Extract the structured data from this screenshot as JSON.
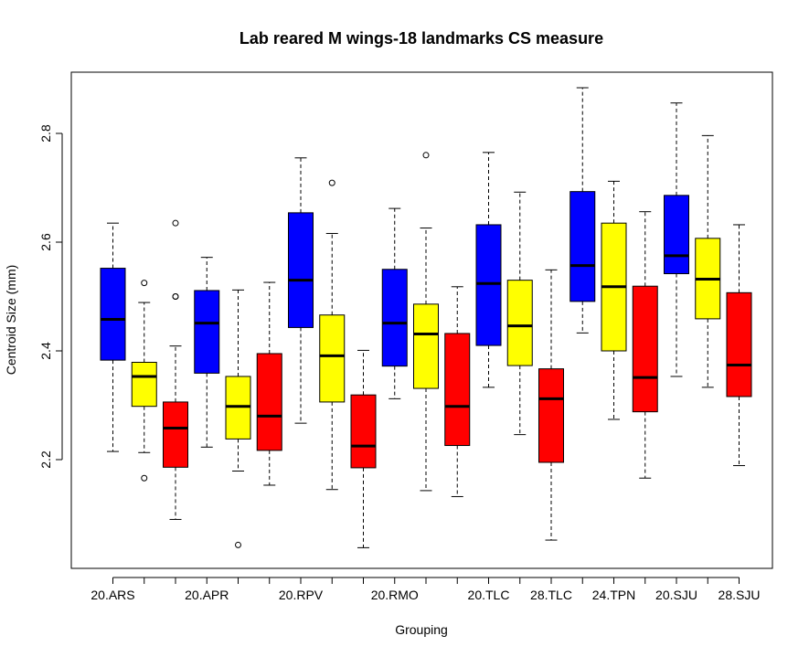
{
  "chart_data": {
    "type": "boxplot",
    "title": "Lab reared M wings-18 landmarks CS measure",
    "xlabel": "Grouping",
    "ylabel": "Centroid Size (mm)",
    "ylim": [
      2.0,
      2.93
    ],
    "yticks": [
      "2.2",
      "2.4",
      "2.6",
      "2.8"
    ],
    "ytick_values": [
      2.2,
      2.4,
      2.6,
      2.8
    ],
    "xtick_labels": [
      "20.ARS",
      "20.APR",
      "20.RPV",
      "20.RMO",
      "20.TLC",
      "28.TLC",
      "24.TPN",
      "20.SJU",
      "28.SJU"
    ],
    "xtick_positions": [
      1,
      4,
      7,
      10,
      13,
      15,
      17,
      19,
      21
    ],
    "colors": {
      "blue": "#0000ff",
      "yellow": "#ffff00",
      "red": "#ff0000"
    },
    "boxes": [
      {
        "pos": 1,
        "color": "blue",
        "whisker_low": 2.215,
        "q1": 2.383,
        "median": 2.458,
        "q3": 2.552,
        "whisker_high": 2.635,
        "outliers": []
      },
      {
        "pos": 2,
        "color": "yellow",
        "whisker_low": 2.213,
        "q1": 2.298,
        "median": 2.353,
        "q3": 2.379,
        "whisker_high": 2.489,
        "outliers": [
          2.525,
          2.166
        ]
      },
      {
        "pos": 3,
        "color": "red",
        "whisker_low": 2.09,
        "q1": 2.186,
        "median": 2.258,
        "q3": 2.306,
        "whisker_high": 2.409,
        "outliers": [
          2.635,
          2.5,
          2.5
        ]
      },
      {
        "pos": 4,
        "color": "blue",
        "whisker_low": 2.223,
        "q1": 2.359,
        "median": 2.451,
        "q3": 2.511,
        "whisker_high": 2.572,
        "outliers": []
      },
      {
        "pos": 5,
        "color": "yellow",
        "whisker_low": 2.179,
        "q1": 2.238,
        "median": 2.298,
        "q3": 2.353,
        "whisker_high": 2.512,
        "outliers": [
          2.043
        ]
      },
      {
        "pos": 6,
        "color": "red",
        "whisker_low": 2.153,
        "q1": 2.217,
        "median": 2.28,
        "q3": 2.395,
        "whisker_high": 2.526,
        "outliers": []
      },
      {
        "pos": 7,
        "color": "blue",
        "whisker_low": 2.267,
        "q1": 2.443,
        "median": 2.53,
        "q3": 2.654,
        "whisker_high": 2.755,
        "outliers": []
      },
      {
        "pos": 8,
        "color": "yellow",
        "whisker_low": 2.145,
        "q1": 2.306,
        "median": 2.391,
        "q3": 2.466,
        "whisker_high": 2.616,
        "outliers": [
          2.709
        ]
      },
      {
        "pos": 9,
        "color": "red",
        "whisker_low": 2.038,
        "q1": 2.185,
        "median": 2.225,
        "q3": 2.319,
        "whisker_high": 2.401,
        "outliers": []
      },
      {
        "pos": 10,
        "color": "blue",
        "whisker_low": 2.312,
        "q1": 2.372,
        "median": 2.451,
        "q3": 2.55,
        "whisker_high": 2.662,
        "outliers": []
      },
      {
        "pos": 11,
        "color": "yellow",
        "whisker_low": 2.143,
        "q1": 2.331,
        "median": 2.431,
        "q3": 2.486,
        "whisker_high": 2.626,
        "outliers": [
          2.76
        ]
      },
      {
        "pos": 12,
        "color": "red",
        "whisker_low": 2.132,
        "q1": 2.226,
        "median": 2.298,
        "q3": 2.432,
        "whisker_high": 2.518,
        "outliers": []
      },
      {
        "pos": 13,
        "color": "blue",
        "whisker_low": 2.333,
        "q1": 2.41,
        "median": 2.524,
        "q3": 2.632,
        "whisker_high": 2.765,
        "outliers": []
      },
      {
        "pos": 14,
        "color": "yellow",
        "whisker_low": 2.246,
        "q1": 2.373,
        "median": 2.446,
        "q3": 2.53,
        "whisker_high": 2.692,
        "outliers": []
      },
      {
        "pos": 15,
        "color": "red",
        "whisker_low": 2.052,
        "q1": 2.195,
        "median": 2.312,
        "q3": 2.367,
        "whisker_high": 2.549,
        "outliers": []
      },
      {
        "pos": 16,
        "color": "blue",
        "whisker_low": 2.433,
        "q1": 2.491,
        "median": 2.557,
        "q3": 2.693,
        "whisker_high": 2.884,
        "outliers": []
      },
      {
        "pos": 17,
        "color": "yellow",
        "whisker_low": 2.274,
        "q1": 2.4,
        "median": 2.518,
        "q3": 2.635,
        "whisker_high": 2.712,
        "outliers": []
      },
      {
        "pos": 18,
        "color": "red",
        "whisker_low": 2.166,
        "q1": 2.288,
        "median": 2.351,
        "q3": 2.519,
        "whisker_high": 2.656,
        "outliers": []
      },
      {
        "pos": 19,
        "color": "blue",
        "whisker_low": 2.353,
        "q1": 2.542,
        "median": 2.575,
        "q3": 2.686,
        "whisker_high": 2.856,
        "outliers": []
      },
      {
        "pos": 20,
        "color": "yellow",
        "whisker_low": 2.333,
        "q1": 2.459,
        "median": 2.532,
        "q3": 2.607,
        "whisker_high": 2.796,
        "outliers": []
      },
      {
        "pos": 21,
        "color": "red",
        "whisker_low": 2.189,
        "q1": 2.316,
        "median": 2.374,
        "q3": 2.507,
        "whisker_high": 2.632,
        "outliers": []
      }
    ]
  }
}
